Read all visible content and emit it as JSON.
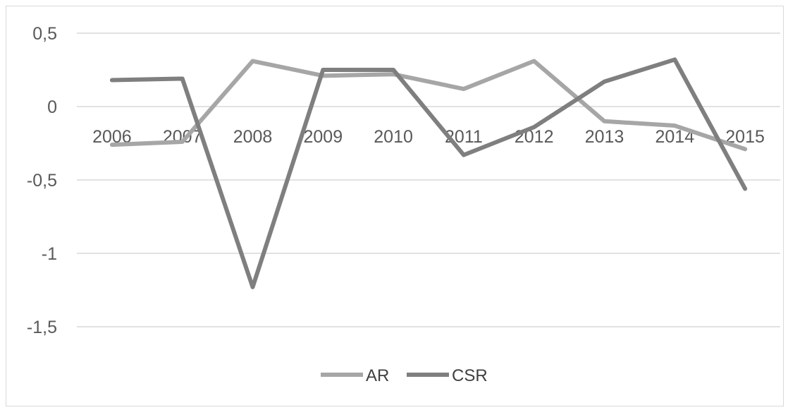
{
  "chart_data": {
    "type": "line",
    "title": "",
    "xlabel": "",
    "ylabel": "",
    "categories": [
      "2006",
      "2007",
      "2008",
      "2009",
      "2010",
      "2011",
      "2012",
      "2013",
      "2014",
      "2015"
    ],
    "y_ticks": [
      0.5,
      0,
      -0.5,
      -1,
      -1.5
    ],
    "y_tick_labels": [
      "0,5",
      "0",
      "-0,5",
      "-1",
      "-1,5"
    ],
    "ylim": [
      -1.5,
      0.5
    ],
    "grid": true,
    "legend_position": "bottom",
    "series": [
      {
        "name": "AR",
        "color": "#a6a6a6",
        "values": [
          -0.26,
          -0.24,
          0.31,
          0.21,
          0.22,
          0.12,
          0.31,
          -0.1,
          -0.13,
          -0.29
        ]
      },
      {
        "name": "CSR",
        "color": "#7f7f7f",
        "values": [
          0.18,
          0.19,
          -1.23,
          0.25,
          0.25,
          -0.33,
          -0.14,
          0.17,
          0.32,
          -0.56
        ]
      }
    ]
  }
}
